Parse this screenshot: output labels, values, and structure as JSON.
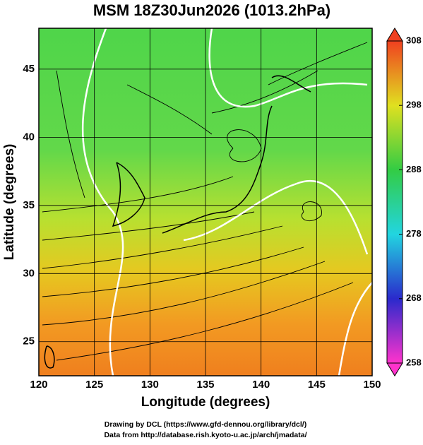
{
  "title": "MSM 18Z30Jun2026 (1013.2hPa)",
  "map": {
    "xlabel": "Longitude (degrees)",
    "ylabel": "Latitude  (degrees)",
    "xlim": [
      120,
      150
    ],
    "xticks": [
      120,
      125,
      130,
      135,
      140,
      145,
      150
    ],
    "ylim": [
      22.5,
      48
    ],
    "yticks": [
      25,
      30,
      35,
      40,
      45
    ]
  },
  "colorbar": {
    "lim": [
      258,
      308
    ],
    "ticks": [
      258,
      268,
      278,
      288,
      298,
      308
    ]
  },
  "credits": [
    "Drawing by DCL (https://www.gfd-dennou.org/library/dcl/)",
    "Data from http://database.rish.kyoto-u.ac.jp/arch/jmadata/"
  ]
}
